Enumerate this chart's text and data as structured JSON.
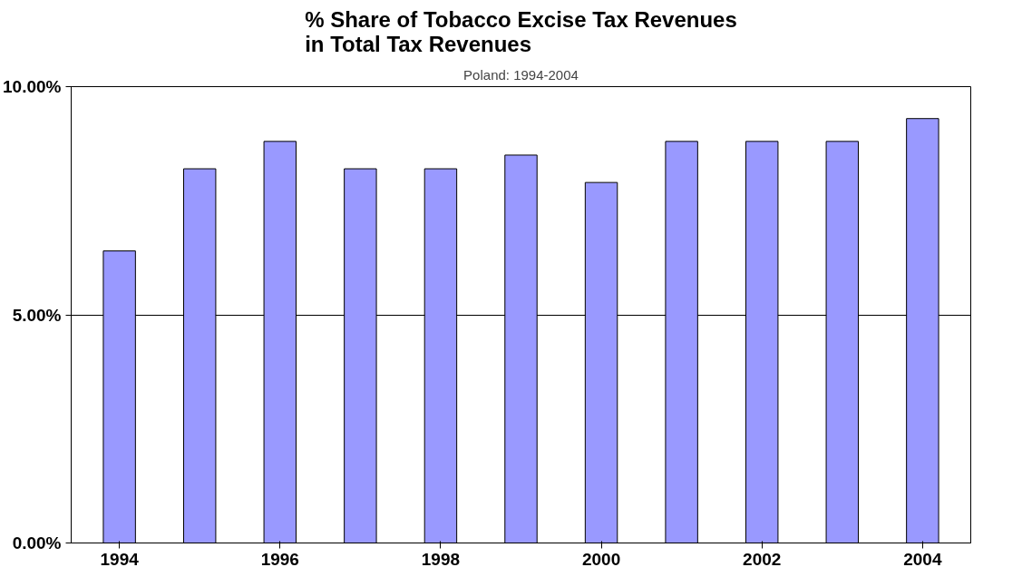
{
  "chart_data": {
    "type": "bar",
    "title": "% Share of Tobacco Excise Tax Revenues\nin Total Tax Revenues",
    "subtitle": "Poland: 1994-2004",
    "categories": [
      "1994",
      null,
      "1996",
      null,
      "1998",
      null,
      "2000",
      null,
      "2002",
      null,
      "2004"
    ],
    "series": [
      {
        "color": "#9999ff",
        "values": [
          6.4,
          8.2,
          8.8,
          8.2,
          8.2,
          8.5,
          7.9,
          8.8,
          8.8,
          8.8,
          9.3
        ]
      }
    ],
    "ylim": [
      0,
      10
    ],
    "yticks": [
      {
        "value": 0,
        "label": "0.00%"
      },
      {
        "value": 5,
        "label": "5.00%"
      },
      {
        "value": 10,
        "label": "10.00%"
      }
    ],
    "grid": "y"
  }
}
